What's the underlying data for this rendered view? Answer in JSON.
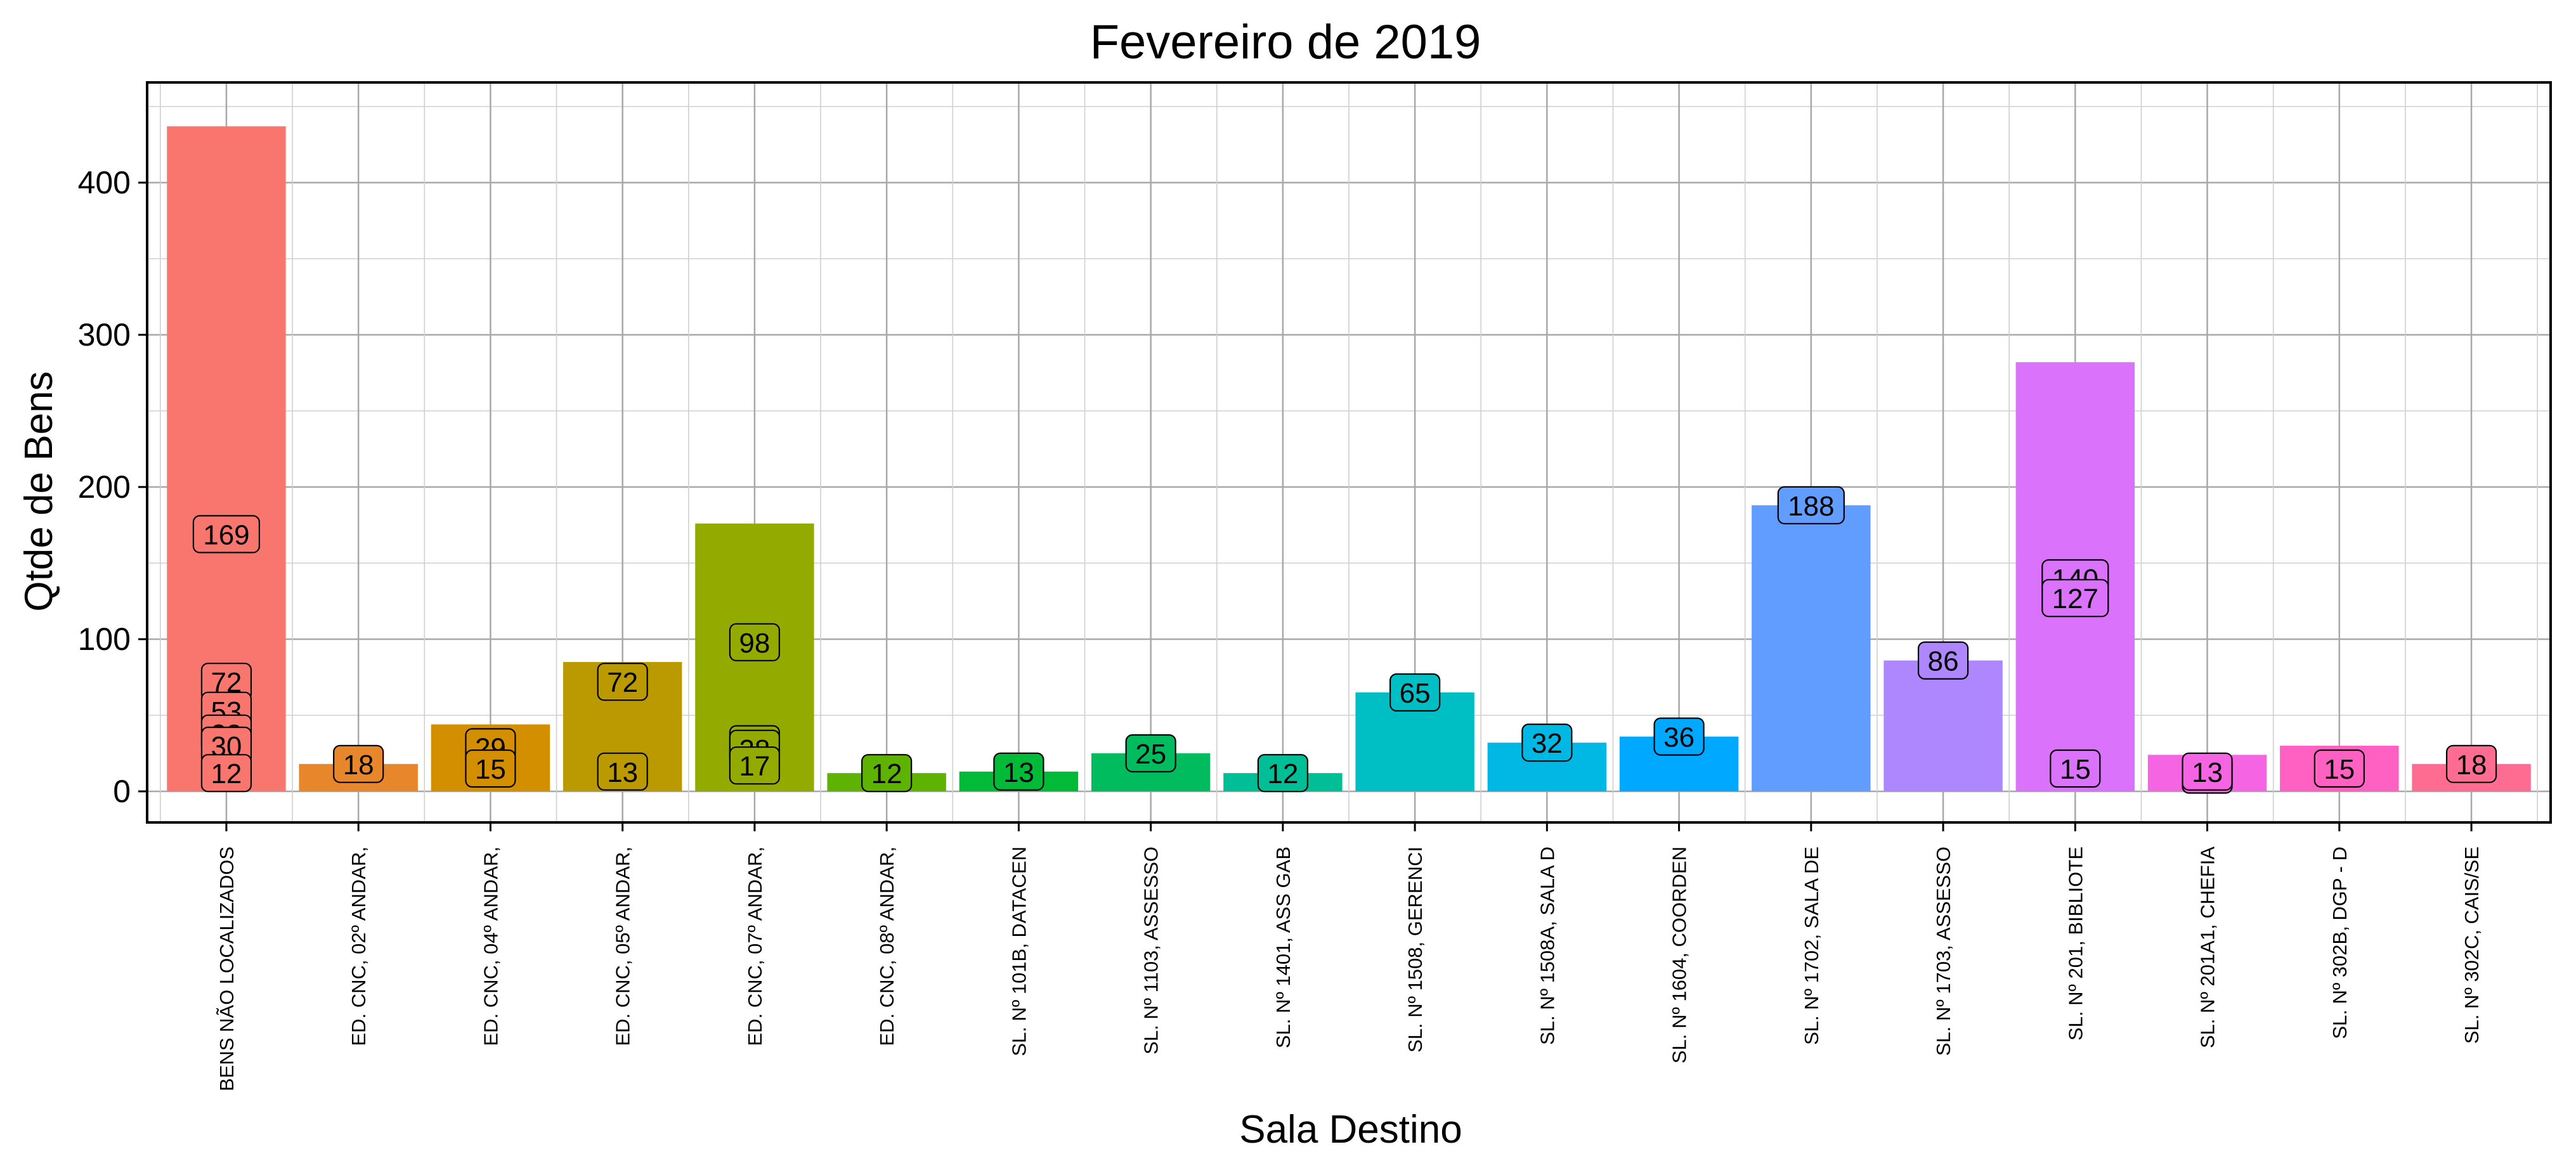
{
  "chart_data": {
    "type": "bar",
    "title": "Fevereiro  de  2019",
    "xlabel": "Sala Destino",
    "ylabel": "Qtde de Bens",
    "ylim": [
      0,
      450
    ],
    "yticks": [
      0,
      100,
      200,
      300,
      400
    ],
    "grid": true,
    "legend": "none",
    "categories": [
      "BENS NÃO LOCALIZADOS",
      "ED. CNC, 02º ANDAR,",
      "ED. CNC, 04º ANDAR,",
      "ED. CNC, 05º ANDAR,",
      "ED. CNC, 07º ANDAR,",
      "ED. CNC, 08º ANDAR,",
      "SL. Nº 101B, DATACEN",
      "SL. Nº 1103, ASSESSO",
      "SL. Nº 1401, ASS GAB",
      "SL. Nº 1508, GERENCI",
      "SL. Nº 1508A, SALA D",
      "SL. Nº 1604, COORDEN",
      "SL. Nº 1702, SALA DE",
      "SL. Nº 1703, ASSESSO",
      "SL. Nº 201, BIBLIOTE",
      "SL. Nº 201A1, CHEFIA",
      "SL. Nº 302B, DGP - D",
      "SL. Nº 302C, CAIS/SE"
    ],
    "values": [
      437,
      18,
      44,
      85,
      176,
      12,
      13,
      25,
      12,
      65,
      32,
      36,
      188,
      86,
      282,
      24,
      30,
      18
    ],
    "colors": [
      "#F8766D",
      "#E58700",
      "#C99800",
      "#A3A500",
      "#6BB100",
      "#00BA38",
      "#00BF7D",
      "#00C0AF",
      "#00BCD8",
      "#00B0F6",
      "#619CFF",
      "#B983FF",
      "#E76BF3",
      "#FD61D1",
      "#FF67A4",
      "#F8766D",
      "#E58700",
      "#C99800"
    ],
    "bar_colors": [
      "#F8766D",
      "#E7862B",
      "#D48F00",
      "#BA9A00",
      "#93AA00",
      "#5EB300",
      "#00BA38",
      "#00BC5E",
      "#00BF96",
      "#00BFC4",
      "#00B8E3",
      "#00A9FF",
      "#619CFF",
      "#AE87FF",
      "#DB72FB",
      "#F564E3",
      "#FF61C3",
      "#FF6C91"
    ],
    "labels": [
      {
        "category": 0,
        "value": 169,
        "text": "169"
      },
      {
        "category": 0,
        "value": 72,
        "text": "72"
      },
      {
        "category": 0,
        "value": 53,
        "text": "53"
      },
      {
        "category": 0,
        "value": 38,
        "text": "38"
      },
      {
        "category": 0,
        "value": 30,
        "text": "30"
      },
      {
        "category": 0,
        "value": 12,
        "text": "12"
      },
      {
        "category": 1,
        "value": 18,
        "text": "18"
      },
      {
        "category": 2,
        "value": 29,
        "text": "29"
      },
      {
        "category": 2,
        "value": 15,
        "text": "15"
      },
      {
        "category": 3,
        "value": 72,
        "text": "72"
      },
      {
        "category": 3,
        "value": 13,
        "text": "13"
      },
      {
        "category": 4,
        "value": 98,
        "text": "98"
      },
      {
        "category": 4,
        "value": 31,
        "text": "31"
      },
      {
        "category": 4,
        "value": 28,
        "text": "28"
      },
      {
        "category": 4,
        "value": 17,
        "text": "17"
      },
      {
        "category": 5,
        "value": 12,
        "text": "12"
      },
      {
        "category": 6,
        "value": 13,
        "text": "13"
      },
      {
        "category": 7,
        "value": 25,
        "text": "25"
      },
      {
        "category": 8,
        "value": 12,
        "text": "12"
      },
      {
        "category": 9,
        "value": 65,
        "text": "65"
      },
      {
        "category": 10,
        "value": 32,
        "text": "32"
      },
      {
        "category": 11,
        "value": 36,
        "text": "36"
      },
      {
        "category": 12,
        "value": 188,
        "text": "188"
      },
      {
        "category": 13,
        "value": 86,
        "text": "86"
      },
      {
        "category": 14,
        "value": 140,
        "text": "140"
      },
      {
        "category": 14,
        "value": 127,
        "text": "127"
      },
      {
        "category": 14,
        "value": 15,
        "text": "15"
      },
      {
        "category": 15,
        "value": 11,
        "text": "11"
      },
      {
        "category": 15,
        "value": 13,
        "text": "13"
      },
      {
        "category": 16,
        "value": 15,
        "text": "15"
      },
      {
        "category": 17,
        "value": 18,
        "text": "18"
      }
    ]
  }
}
